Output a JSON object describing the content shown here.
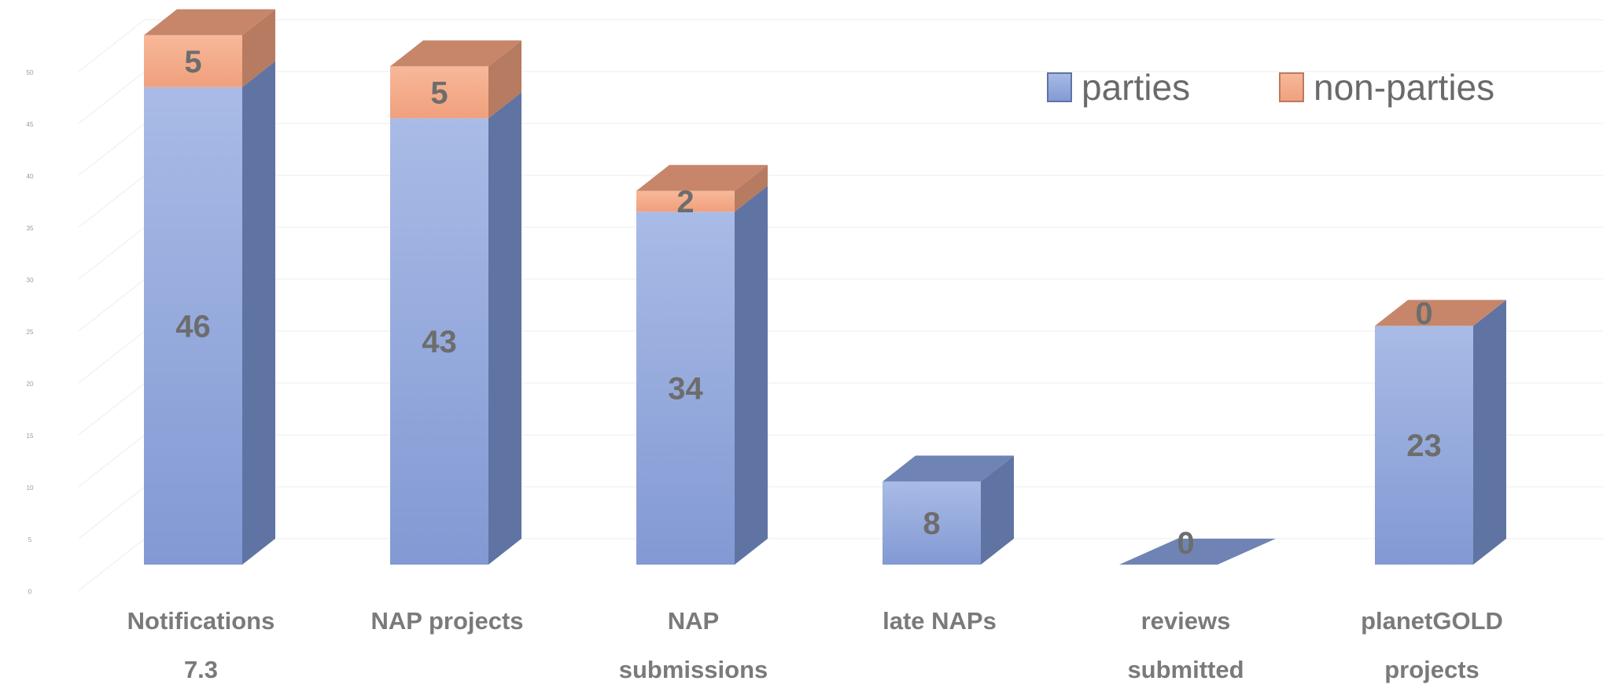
{
  "chart_data": {
    "type": "bar",
    "stacked": true,
    "three_d": true,
    "categories": [
      [
        "Notifications",
        "7.3"
      ],
      [
        "NAP projects"
      ],
      [
        "NAP",
        "submissions"
      ],
      [
        "late NAPs"
      ],
      [
        "reviews",
        "submitted"
      ],
      [
        "planetGOLD",
        "projects"
      ]
    ],
    "series": [
      {
        "name": "parties",
        "values": [
          46,
          43,
          34,
          8,
          0,
          23
        ],
        "color": "#8aa4d8",
        "color_side": "#5f74a3",
        "color_top": "#6f84b4"
      },
      {
        "name": "non-parties",
        "values": [
          5,
          5,
          2,
          0,
          0,
          0
        ],
        "color": "#f3a582",
        "color_side": "#b77b61",
        "color_top": "#c7866a"
      }
    ],
    "value_labels": [
      [
        "46",
        "43",
        "34",
        "8",
        "0",
        "23"
      ],
      [
        "5",
        "5",
        "2",
        "",
        "",
        "0"
      ]
    ],
    "y_ticks": [
      "0",
      "5",
      "10",
      "15",
      "20",
      "25",
      "30",
      "35",
      "40",
      "45",
      "50"
    ],
    "ylim": [
      0,
      55
    ],
    "grid": true,
    "legend": "top-right",
    "title": "",
    "xlabel": "",
    "ylabel": ""
  }
}
